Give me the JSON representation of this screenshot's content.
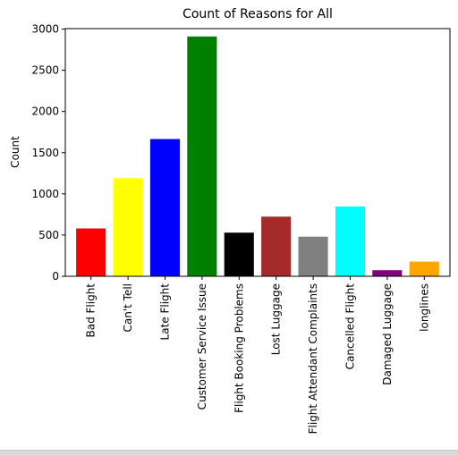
{
  "chart_data": {
    "type": "bar",
    "title": "Count of Reasons for All",
    "xlabel": "",
    "ylabel": "Count",
    "ylim": [
      0,
      3000
    ],
    "yticks": [
      0,
      500,
      1000,
      1500,
      2000,
      2500,
      3000
    ],
    "ytick_labels": [
      "0",
      "500",
      "1000",
      "1500",
      "2000",
      "2500",
      "3000"
    ],
    "categories": [
      "Bad Flight",
      "Can't Tell",
      "Late Flight",
      "Customer Service Issue",
      "Flight Booking Problems",
      "Lost Luggage",
      "Flight Attendant Complaints",
      "Cancelled Flight",
      "Damaged Luggage",
      "longlines"
    ],
    "values": [
      580,
      1190,
      1665,
      2910,
      530,
      724,
      481,
      847,
      74,
      178
    ],
    "colors": [
      "#ff0000",
      "#ffff00",
      "#0000ff",
      "#008000",
      "#000000",
      "#a52a2a",
      "#808080",
      "#00ffff",
      "#800080",
      "#ffa500"
    ],
    "grid": false,
    "legend": "none"
  }
}
